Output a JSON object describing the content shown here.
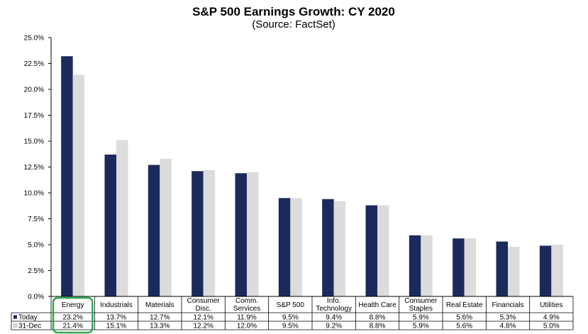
{
  "chart_data": {
    "type": "bar",
    "title": "S&P 500 Earnings Growth: CY 2020",
    "subtitle": "(Source: FactSet)",
    "categories": [
      [
        "Energy"
      ],
      [
        "Industrials"
      ],
      [
        "Materials"
      ],
      [
        "Consumer",
        "Disc."
      ],
      [
        "Comm.",
        "Services"
      ],
      [
        "S&P 500"
      ],
      [
        "Info.",
        "Technology"
      ],
      [
        "Health Care"
      ],
      [
        "Consumer",
        "Staples"
      ],
      [
        "Real Estate"
      ],
      [
        "Financials"
      ],
      [
        "Utilities"
      ]
    ],
    "series": [
      {
        "name": "Today",
        "color": "#1b2a5a",
        "values": [
          23.2,
          13.7,
          12.7,
          12.1,
          11.9,
          9.5,
          9.4,
          8.8,
          5.9,
          5.6,
          5.3,
          4.9
        ],
        "labels": [
          "23.2%",
          "13.7%",
          "12.7%",
          "12.1%",
          "11.9%",
          "9.5%",
          "9.4%",
          "8.8%",
          "5.9%",
          "5.6%",
          "5.3%",
          "4.9%"
        ]
      },
      {
        "name": "31-Dec",
        "color": "#dcdcdc",
        "values": [
          21.4,
          15.1,
          13.3,
          12.2,
          12.0,
          9.5,
          9.2,
          8.8,
          5.9,
          5.6,
          4.8,
          5.0
        ],
        "labels": [
          "21.4%",
          "15.1%",
          "13.3%",
          "12.2%",
          "12.0%",
          "9.5%",
          "9.2%",
          "8.8%",
          "5.9%",
          "5.6%",
          "4.8%",
          "5.0%"
        ]
      }
    ],
    "ylim": [
      0,
      25
    ],
    "yticks": [
      "0.0%",
      "2.5%",
      "5.0%",
      "7.5%",
      "10.0%",
      "12.5%",
      "15.0%",
      "17.5%",
      "20.0%",
      "22.5%",
      "25.0%"
    ],
    "highlight": {
      "category_index": 0,
      "color": "#2fa84f"
    },
    "grid": false,
    "legend": "table-below"
  }
}
